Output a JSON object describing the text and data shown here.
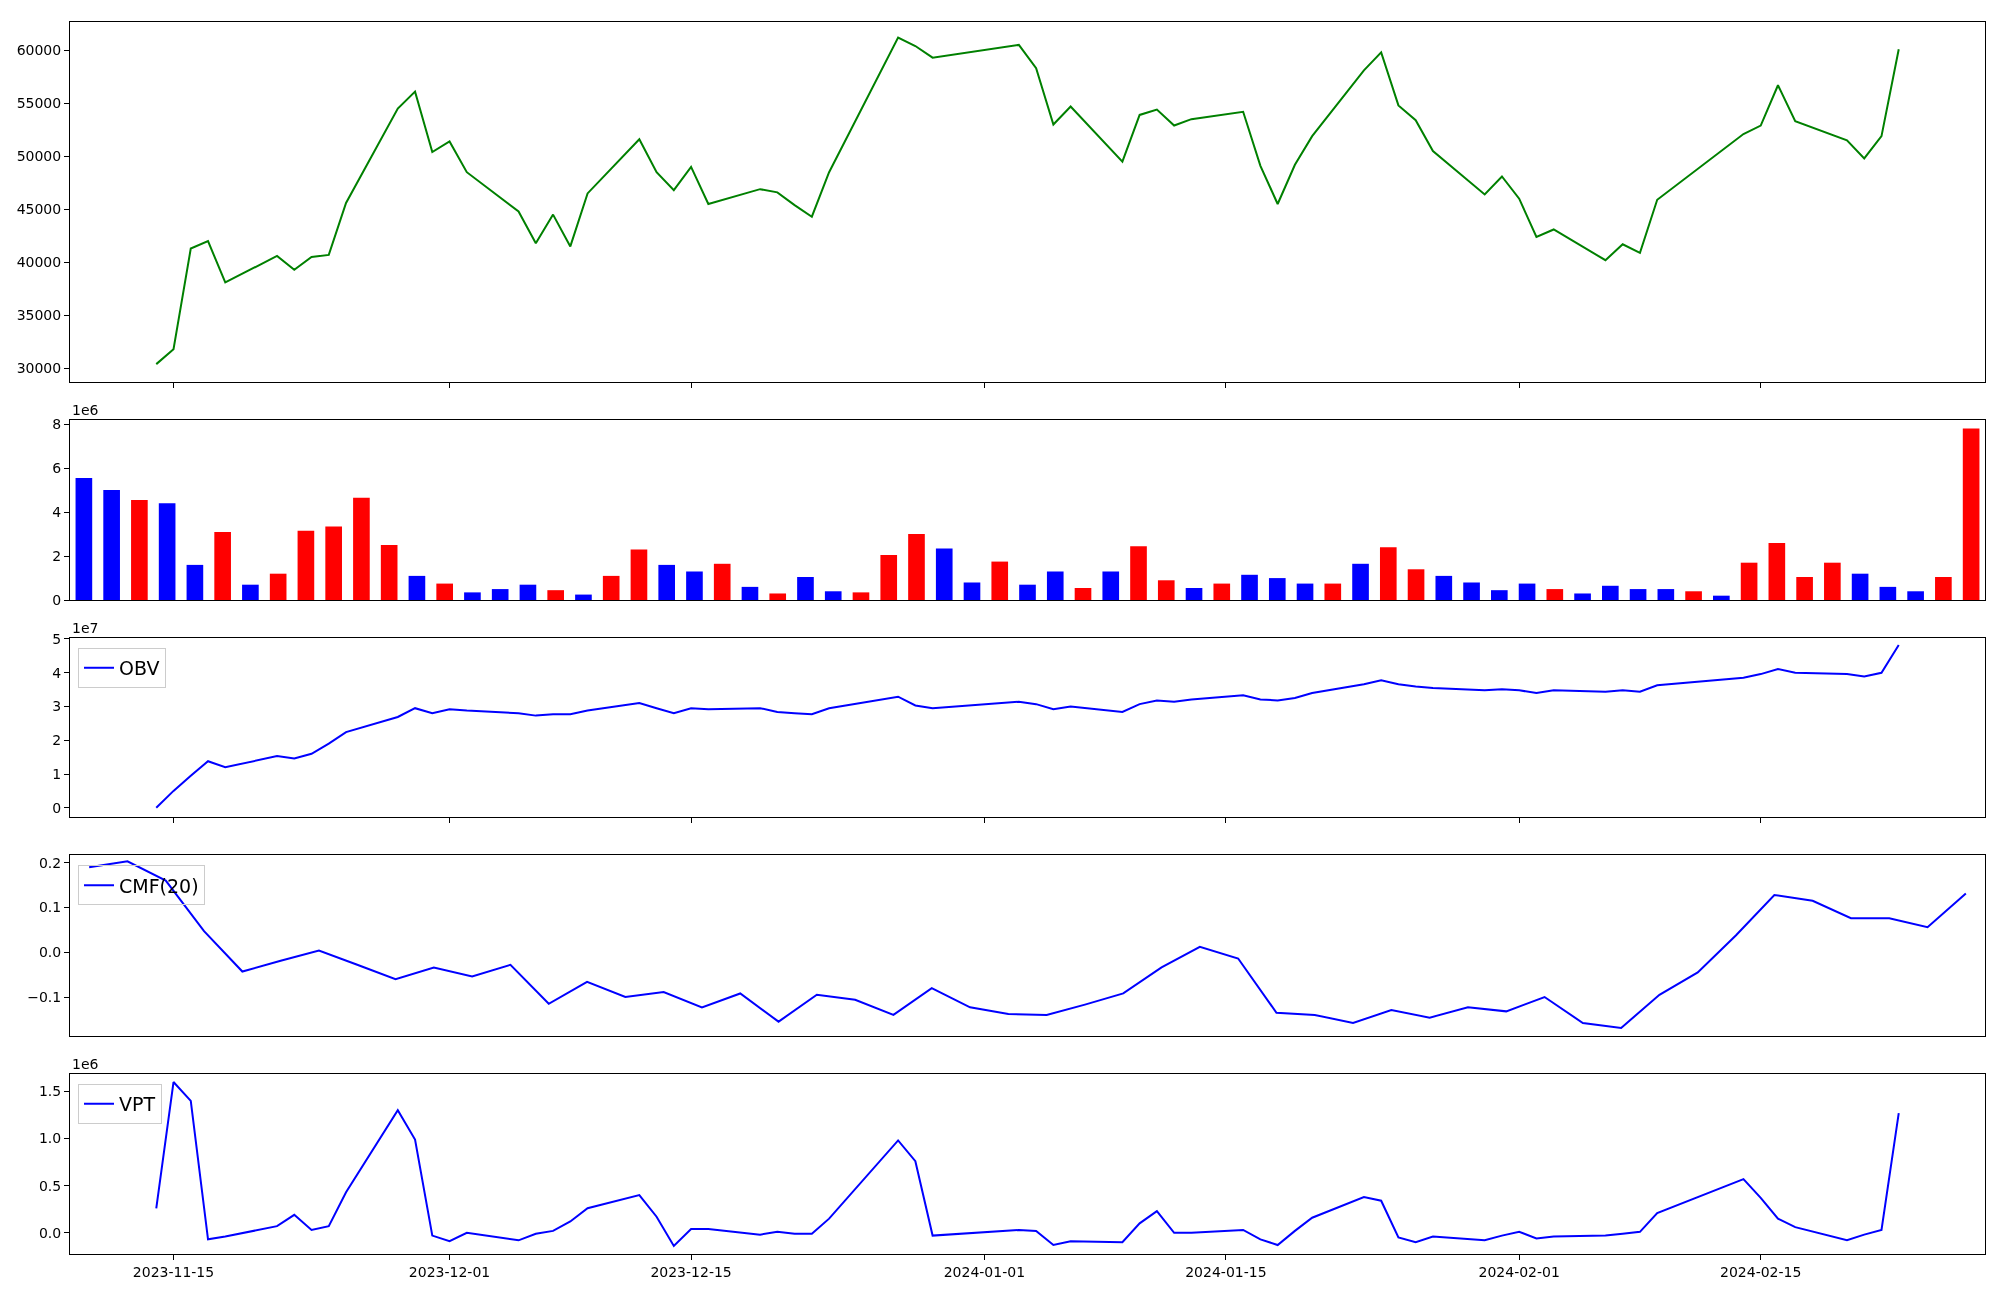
{
  "chart_data": [
    {
      "type": "line",
      "x": [
        "2023-11-14",
        "2023-11-15",
        "2023-11-16",
        "2023-11-17",
        "2023-11-18",
        "2023-11-21",
        "2023-11-22",
        "2023-11-23",
        "2023-11-24",
        "2023-11-25",
        "2023-11-28",
        "2023-11-29",
        "2023-11-30",
        "2023-12-01",
        "2023-12-02",
        "2023-12-05",
        "2023-12-06",
        "2023-12-07",
        "2023-12-08",
        "2023-12-09",
        "2023-12-12",
        "2023-12-13",
        "2023-12-14",
        "2023-12-15",
        "2023-12-16",
        "2023-12-19",
        "2023-12-20",
        "2023-12-21",
        "2023-12-22",
        "2023-12-23",
        "2023-12-27",
        "2023-12-28",
        "2023-12-29",
        "2024-01-03",
        "2024-01-04",
        "2024-01-05",
        "2024-01-06",
        "2024-01-09",
        "2024-01-10",
        "2024-01-11",
        "2024-01-12",
        "2024-01-13",
        "2024-01-16",
        "2024-01-17",
        "2024-01-18",
        "2024-01-19",
        "2024-01-20",
        "2024-01-23",
        "2024-01-24",
        "2024-01-25",
        "2024-01-26",
        "2024-01-27",
        "2024-01-30",
        "2024-01-31",
        "2024-02-01",
        "2024-02-02",
        "2024-02-03",
        "2024-02-06",
        "2024-02-07",
        "2024-02-08",
        "2024-02-09",
        "2024-02-14",
        "2024-02-15",
        "2024-02-16",
        "2024-02-17",
        "2024-02-20",
        "2024-02-21",
        "2024-02-22",
        "2024-02-23"
      ],
      "series": [
        {
          "color": "#008000",
          "values": [
            30400,
            31800,
            41300,
            42000,
            38100,
            40600,
            39300,
            40500,
            40700,
            45600,
            54500,
            56100,
            50400,
            51400,
            48500,
            44800,
            41800,
            44500,
            41500,
            46500,
            51600,
            48500,
            46800,
            49000,
            45500,
            46900,
            46600,
            45400,
            44300,
            48500,
            61200,
            60400,
            59300,
            60500,
            58300,
            53000,
            54700,
            49500,
            53900,
            54400,
            52900,
            53500,
            54200,
            49100,
            45500,
            49200,
            51900,
            58100,
            59800,
            54800,
            53400,
            50500,
            46400,
            48100,
            46000,
            42400,
            43100,
            40200,
            41700,
            40900,
            45900,
            52100,
            52900,
            56700,
            53300,
            51500,
            49800,
            51900,
            60100
          ]
        }
      ],
      "xlim": [
        "2023-11-09",
        "2024-02-28"
      ],
      "xticks": [
        "2023-11-15",
        "2023-12-01",
        "2023-12-15",
        "2024-01-01",
        "2024-01-15",
        "2024-02-01",
        "2024-02-15"
      ],
      "ylim": [
        28750,
        62680
      ],
      "yticks": [
        30000,
        35000,
        40000,
        45000,
        50000,
        55000,
        60000
      ],
      "tick_labels": "y"
    },
    {
      "type": "bar",
      "categories": [
        null,
        null,
        null,
        null,
        null,
        null,
        null,
        null,
        null,
        null,
        null,
        null,
        null,
        null,
        null,
        null,
        null,
        null,
        null,
        null,
        null,
        null,
        null,
        null,
        null,
        null,
        null,
        null,
        null,
        null,
        null,
        null,
        null,
        null,
        null,
        null,
        null,
        null,
        null,
        null,
        null,
        null,
        null,
        null,
        null,
        null,
        null,
        null,
        null,
        null,
        null,
        null,
        null,
        null,
        null,
        null,
        null,
        null,
        null,
        null,
        null,
        null,
        null,
        null,
        null,
        null,
        null,
        null,
        null
      ],
      "values": [
        5.55,
        5.0,
        4.55,
        4.4,
        1.6,
        3.1,
        0.7,
        1.2,
        3.15,
        3.35,
        4.65,
        2.5,
        1.1,
        0.75,
        0.35,
        0.5,
        0.7,
        0.45,
        0.25,
        1.1,
        2.3,
        1.6,
        1.3,
        1.65,
        0.6,
        0.3,
        1.05,
        0.4,
        0.35,
        2.05,
        3.0,
        2.35,
        0.8,
        1.75,
        0.7,
        1.3,
        0.55,
        1.3,
        2.45,
        0.9,
        0.55,
        0.75,
        1.15,
        1.0,
        0.75,
        0.75,
        1.65,
        2.4,
        1.4,
        1.1,
        0.8,
        0.45,
        0.75,
        0.5,
        0.3,
        0.65,
        0.5,
        0.5,
        0.4,
        0.2,
        1.7,
        2.6,
        1.05,
        1.7,
        1.2,
        0.6,
        0.4,
        1.05,
        7.8
      ],
      "colors": [
        "#0000ff",
        "#0000ff",
        "#ff0000",
        "#0000ff",
        "#0000ff",
        "#ff0000",
        "#0000ff",
        "#ff0000",
        "#ff0000",
        "#ff0000",
        "#ff0000",
        "#ff0000",
        "#0000ff",
        "#ff0000",
        "#0000ff",
        "#0000ff",
        "#0000ff",
        "#ff0000",
        "#0000ff",
        "#ff0000",
        "#ff0000",
        "#0000ff",
        "#0000ff",
        "#ff0000",
        "#0000ff",
        "#ff0000",
        "#0000ff",
        "#0000ff",
        "#ff0000",
        "#ff0000",
        "#ff0000",
        "#0000ff",
        "#0000ff",
        "#ff0000",
        "#0000ff",
        "#0000ff",
        "#ff0000",
        "#0000ff",
        "#ff0000",
        "#ff0000",
        "#0000ff",
        "#ff0000",
        "#0000ff",
        "#0000ff",
        "#0000ff",
        "#ff0000",
        "#0000ff",
        "#ff0000",
        "#ff0000",
        "#0000ff",
        "#0000ff",
        "#0000ff",
        "#0000ff",
        "#ff0000",
        "#0000ff",
        "#0000ff",
        "#0000ff",
        "#0000ff",
        "#ff0000",
        "#0000ff",
        "#ff0000",
        "#ff0000",
        "#ff0000",
        "#ff0000",
        "#0000ff",
        "#0000ff",
        "#0000ff",
        "#ff0000",
        "#ff0000"
      ],
      "ylim": [
        0,
        8.18
      ],
      "yticks": [
        0,
        2,
        4,
        6,
        8
      ],
      "annotations": [
        "1e6"
      ],
      "tick_labels": "y"
    },
    {
      "type": "line",
      "x": [
        "2023-11-14",
        "2023-11-15",
        "2023-11-16",
        "2023-11-17",
        "2023-11-18",
        "2023-11-21",
        "2023-11-22",
        "2023-11-23",
        "2023-11-24",
        "2023-11-25",
        "2023-11-28",
        "2023-11-29",
        "2023-11-30",
        "2023-12-01",
        "2023-12-02",
        "2023-12-05",
        "2023-12-06",
        "2023-12-07",
        "2023-12-08",
        "2023-12-09",
        "2023-12-12",
        "2023-12-13",
        "2023-12-14",
        "2023-12-15",
        "2023-12-16",
        "2023-12-19",
        "2023-12-20",
        "2023-12-21",
        "2023-12-22",
        "2023-12-23",
        "2023-12-27",
        "2023-12-28",
        "2023-12-29",
        "2024-01-03",
        "2024-01-04",
        "2024-01-05",
        "2024-01-06",
        "2024-01-09",
        "2024-01-10",
        "2024-01-11",
        "2024-01-12",
        "2024-01-13",
        "2024-01-16",
        "2024-01-17",
        "2024-01-18",
        "2024-01-19",
        "2024-01-20",
        "2024-01-23",
        "2024-01-24",
        "2024-01-25",
        "2024-01-26",
        "2024-01-27",
        "2024-01-30",
        "2024-01-31",
        "2024-02-01",
        "2024-02-02",
        "2024-02-03",
        "2024-02-06",
        "2024-02-07",
        "2024-02-08",
        "2024-02-09",
        "2024-02-14",
        "2024-02-15",
        "2024-02-16",
        "2024-02-17",
        "2024-02-20",
        "2024-02-21",
        "2024-02-22",
        "2024-02-23"
      ],
      "series": [
        {
          "name": "OBV",
          "color": "#0000ff",
          "values": [
            0,
            0.5,
            0.95,
            1.38,
            1.2,
            1.53,
            1.46,
            1.6,
            1.9,
            2.24,
            2.69,
            2.95,
            2.8,
            2.92,
            2.88,
            2.8,
            2.73,
            2.77,
            2.77,
            2.88,
            3.1,
            2.95,
            2.8,
            2.95,
            2.92,
            2.95,
            2.84,
            2.8,
            2.77,
            2.95,
            3.29,
            3.03,
            2.95,
            3.14,
            3.07,
            2.92,
            3.0,
            2.84,
            3.07,
            3.18,
            3.14,
            3.21,
            3.33,
            3.21,
            3.18,
            3.25,
            3.4,
            3.66,
            3.78,
            3.66,
            3.59,
            3.55,
            3.48,
            3.51,
            3.48,
            3.4,
            3.48,
            3.44,
            3.48,
            3.44,
            3.63,
            3.85,
            3.96,
            4.11,
            4.0,
            3.96,
            3.89,
            4.0,
            4.82
          ]
        }
      ],
      "xlim": [
        "2023-11-09",
        "2024-02-28"
      ],
      "xticks": [
        "2023-11-15",
        "2023-12-01",
        "2023-12-15",
        "2024-01-01",
        "2024-01-15",
        "2024-02-01",
        "2024-02-15"
      ],
      "ylim": [
        -0.26,
        5.04
      ],
      "yticks": [
        0,
        1,
        2,
        3,
        4,
        5
      ],
      "annotations": [
        "1e7"
      ],
      "legend": "top left",
      "tick_labels": "y"
    },
    {
      "type": "line",
      "categories": [
        null,
        null,
        null,
        null,
        null,
        null,
        null,
        null,
        null,
        null,
        null,
        null,
        null,
        null,
        null,
        null,
        null,
        null,
        null,
        null,
        null,
        null,
        null,
        null,
        null,
        null,
        null,
        null,
        null,
        null,
        null,
        null,
        null,
        null,
        null,
        null,
        null,
        null,
        null,
        null,
        null,
        null,
        null,
        null,
        null,
        null,
        null,
        null,
        null,
        null
      ],
      "series": [
        {
          "name": "CMF(20)",
          "color": "#0000ff",
          "values": [
            0.19,
            0.203,
            0.16,
            0.047,
            -0.043,
            -0.019,
            0.004,
            -0.028,
            -0.06,
            -0.034,
            -0.054,
            -0.028,
            -0.115,
            -0.066,
            -0.1,
            -0.089,
            -0.123,
            -0.092,
            -0.155,
            -0.095,
            -0.106,
            -0.14,
            -0.08,
            -0.123,
            -0.138,
            -0.14,
            -0.117,
            -0.092,
            -0.034,
            0.012,
            -0.014,
            -0.135,
            -0.14,
            -0.158,
            -0.129,
            -0.146,
            -0.123,
            -0.132,
            -0.1,
            -0.158,
            -0.169,
            -0.095,
            -0.045,
            0.038,
            0.128,
            0.115,
            0.076,
            0.076,
            0.056,
            0.131
          ]
        }
      ],
      "ylim": [
        -0.187,
        0.217
      ],
      "yticks": [
        {
          "value": -0.1,
          "label": "−0.1"
        },
        {
          "value": 0,
          "label": "0.0"
        },
        0.1,
        0.2
      ],
      "legend": "top left",
      "tick_labels": "y"
    },
    {
      "type": "line",
      "x": [
        "2023-11-14",
        "2023-11-15",
        "2023-11-16",
        "2023-11-17",
        "2023-11-18",
        "2023-11-21",
        "2023-11-22",
        "2023-11-23",
        "2023-11-24",
        "2023-11-25",
        "2023-11-28",
        "2023-11-29",
        "2023-11-30",
        "2023-12-01",
        "2023-12-02",
        "2023-12-05",
        "2023-12-06",
        "2023-12-07",
        "2023-12-08",
        "2023-12-09",
        "2023-12-12",
        "2023-12-13",
        "2023-12-14",
        "2023-12-15",
        "2023-12-16",
        "2023-12-19",
        "2023-12-20",
        "2023-12-21",
        "2023-12-22",
        "2023-12-23",
        "2023-12-27",
        "2023-12-28",
        "2023-12-29",
        "2024-01-03",
        "2024-01-04",
        "2024-01-05",
        "2024-01-06",
        "2024-01-09",
        "2024-01-10",
        "2024-01-11",
        "2024-01-12",
        "2024-01-13",
        "2024-01-16",
        "2024-01-17",
        "2024-01-18",
        "2024-01-19",
        "2024-01-20",
        "2024-01-23",
        "2024-01-24",
        "2024-01-25",
        "2024-01-26",
        "2024-01-27",
        "2024-01-30",
        "2024-01-31",
        "2024-02-01",
        "2024-02-02",
        "2024-02-03",
        "2024-02-06",
        "2024-02-07",
        "2024-02-08",
        "2024-02-09",
        "2024-02-14",
        "2024-02-15",
        "2024-02-16",
        "2024-02-17",
        "2024-02-20",
        "2024-02-21",
        "2024-02-22",
        "2024-02-23"
      ],
      "series": [
        {
          "name": "VPT",
          "color": "#0000ff",
          "values": [
            0.26,
            1.6,
            1.4,
            -0.07,
            -0.04,
            0.07,
            0.19,
            0.03,
            0.07,
            0.43,
            1.3,
            0.99,
            -0.03,
            -0.09,
            0.0,
            -0.08,
            -0.01,
            0.02,
            0.12,
            0.26,
            0.4,
            0.17,
            -0.14,
            0.04,
            0.04,
            -0.02,
            0.01,
            -0.01,
            -0.01,
            0.15,
            0.98,
            0.76,
            -0.03,
            0.03,
            0.02,
            -0.13,
            -0.09,
            -0.1,
            0.1,
            0.23,
            0.0,
            0.0,
            0.03,
            -0.07,
            -0.13,
            0.02,
            0.16,
            0.38,
            0.34,
            -0.05,
            -0.1,
            -0.04,
            -0.08,
            -0.03,
            0.01,
            -0.06,
            -0.04,
            -0.03,
            -0.01,
            0.01,
            0.21,
            0.57,
            0.37,
            0.15,
            0.06,
            -0.08,
            -0.02,
            0.03,
            1.27
          ]
        }
      ],
      "xlim": [
        "2023-11-09",
        "2024-02-28"
      ],
      "xticks": [
        "2023-11-15",
        "2023-12-01",
        "2023-12-15",
        "2024-01-01",
        "2024-01-15",
        "2024-02-01",
        "2024-02-15"
      ],
      "ylim": [
        -0.23,
        1.69
      ],
      "yticks": [
        {
          "value": 0,
          "label": "0.0"
        },
        0.5,
        {
          "value": 1,
          "label": "1.0"
        },
        1.5
      ],
      "annotations": [
        "1e6"
      ],
      "legend": "top left"
    }
  ]
}
